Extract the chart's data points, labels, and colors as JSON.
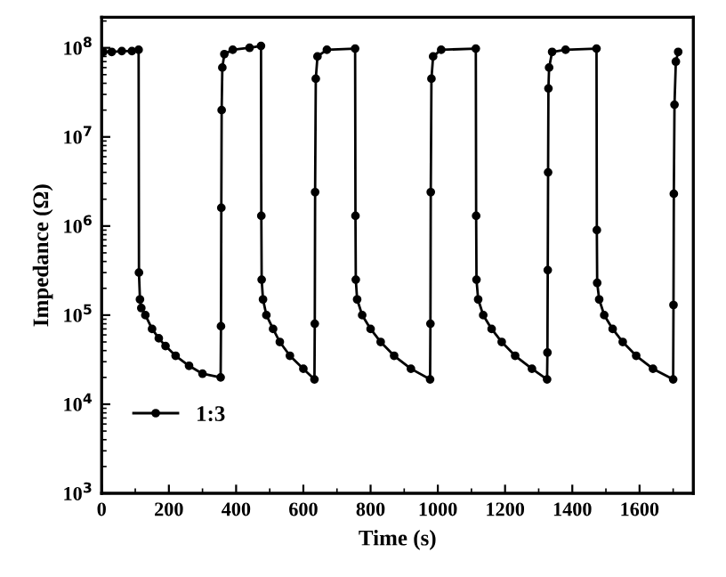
{
  "chart_data": {
    "type": "line",
    "xlabel": "Time (s)",
    "ylabel": "Impedance (Ω)",
    "log": "y",
    "xlim": [
      0,
      1760
    ],
    "ylim": [
      1000,
      220000000
    ],
    "xticks": [
      0,
      200,
      400,
      600,
      800,
      1000,
      1200,
      1400,
      1600
    ],
    "yticks": [
      {
        "value": 1000,
        "label": "10$^{3}$"
      },
      {
        "value": 10000,
        "label": "10$^{4}$"
      },
      {
        "value": 100000,
        "label": "10$^{5}$"
      },
      {
        "value": 1000000,
        "label": "10$^{6}$"
      },
      {
        "value": 10000000,
        "label": "10$^{7}$"
      },
      {
        "value": 100000000,
        "label": "10$^{8}$"
      }
    ],
    "grid": false,
    "legend": "bottom left",
    "marker": "circle",
    "line_style": "solid",
    "x": [
      5,
      30,
      60,
      90,
      110,
      111,
      114,
      118,
      130,
      150,
      170,
      190,
      220,
      260,
      300,
      354,
      355,
      356,
      357,
      359,
      365,
      390,
      440,
      474,
      475,
      476,
      480,
      490,
      510,
      530,
      560,
      600,
      633,
      634,
      635,
      637,
      642,
      670,
      754,
      755,
      756,
      760,
      775,
      800,
      830,
      870,
      920,
      977,
      978,
      979,
      981,
      986,
      1010,
      1113,
      1114,
      1115,
      1120,
      1135,
      1160,
      1190,
      1230,
      1280,
      1325,
      1326,
      1327,
      1328,
      1329,
      1331,
      1340,
      1380,
      1472,
      1473,
      1474,
      1480,
      1495,
      1520,
      1550,
      1590,
      1640,
      1700,
      1701,
      1702,
      1704,
      1708,
      1715
    ],
    "series": [
      {
        "name": "1:3",
        "color": "#000000",
        "values": [
          90000000,
          90000000,
          92000000,
          92000000,
          95000000,
          300000,
          150000,
          120000,
          100000,
          70000,
          55000,
          45000,
          35000,
          27000,
          22000,
          20000,
          75000,
          1600000,
          20000000,
          60000000,
          85000000,
          95000000,
          100000000,
          105000000,
          1300000,
          250000,
          150000,
          100000,
          70000,
          50000,
          35000,
          25000,
          19000,
          80000,
          2400000,
          45000000,
          80000000,
          95000000,
          98000000,
          1300000,
          250000,
          150000,
          100000,
          70000,
          50000,
          35000,
          25000,
          19000,
          80000,
          2400000,
          45000000,
          80000000,
          95000000,
          98000000,
          1300000,
          250000,
          150000,
          100000,
          70000,
          50000,
          35000,
          25000,
          19000,
          38000,
          320000,
          4000000,
          35000000,
          60000000,
          90000000,
          95000000,
          98000000,
          900000,
          230000,
          150000,
          100000,
          70000,
          50000,
          35000,
          25000,
          19000,
          130000,
          2300000,
          23000000,
          70000000,
          90000000
        ]
      }
    ]
  }
}
